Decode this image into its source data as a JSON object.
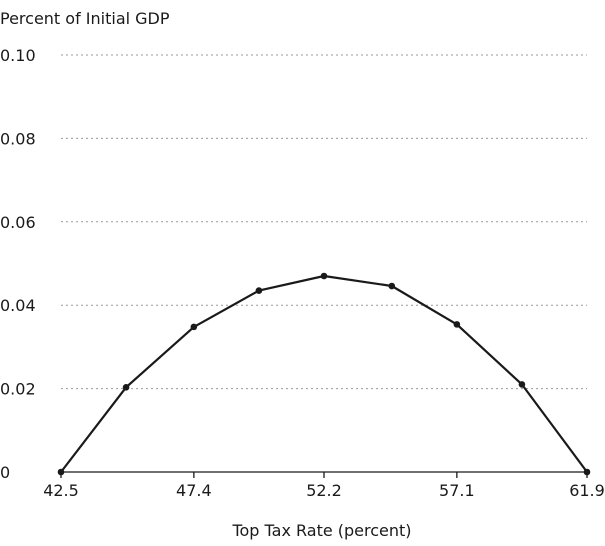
{
  "chart_data": {
    "type": "line",
    "title": "",
    "ylabel": "Percent of Initial GDP",
    "xlabel": "Top Tax Rate (percent)",
    "xlim": [
      42.5,
      61.9
    ],
    "ylim": [
      0,
      0.1
    ],
    "x_ticks": [
      42.5,
      47.4,
      52.2,
      57.1,
      61.9
    ],
    "x_tick_labels": [
      "42.5",
      "47.4",
      "52.2",
      "57.1",
      "61.9"
    ],
    "y_ticks": [
      0,
      0.02,
      0.04,
      0.06,
      0.08,
      0.1
    ],
    "y_tick_labels": [
      "0",
      "0.02",
      "0.04",
      "0.06",
      "0.08",
      "0.10"
    ],
    "grid": "horizontal dotted",
    "series": [
      {
        "x": [
          42.5,
          44.9,
          47.4,
          49.8,
          52.2,
          54.7,
          57.1,
          59.5,
          61.9
        ],
        "values": [
          0,
          0.0203,
          0.0348,
          0.0435,
          0.047,
          0.0446,
          0.0354,
          0.021,
          0
        ],
        "color": "#1a1a1a"
      }
    ]
  }
}
